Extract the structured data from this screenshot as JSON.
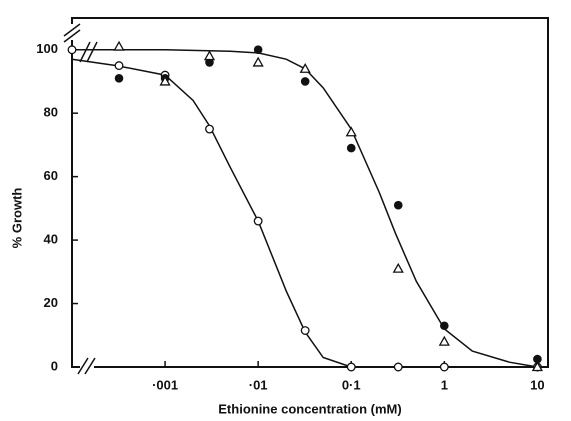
{
  "chart_data": {
    "type": "scatter",
    "x_label": "Ethionine concentration (mM)",
    "y_label": "% Growth",
    "xscale": "log",
    "xlim": [
      0.0001,
      13
    ],
    "xticks": [
      {
        "value": 0.001,
        "label": "·001"
      },
      {
        "value": 0.01,
        "label": "·01"
      },
      {
        "value": 0.1,
        "label": "0·1"
      },
      1,
      10
    ],
    "ylim": [
      0,
      110
    ],
    "yticks": [
      0,
      20,
      40,
      60,
      80,
      100
    ],
    "color": "#111111",
    "series": [
      {
        "marker": "open-circle",
        "x": [
          0.0001,
          0.00032,
          0.001,
          0.003,
          0.01,
          0.032,
          0.1,
          0.32,
          1,
          10
        ],
        "values": [
          100,
          95,
          92,
          75,
          46,
          11.5,
          0,
          0,
          0,
          0
        ]
      },
      {
        "marker": "filled-circle",
        "x": [
          0.00032,
          0.001,
          0.003,
          0.01,
          0.032,
          0.1,
          0.32,
          1,
          10
        ],
        "values": [
          91,
          91,
          96,
          100,
          90,
          69,
          51,
          13,
          2.5
        ]
      },
      {
        "marker": "open-triangle",
        "x": [
          0.00032,
          0.001,
          0.003,
          0.01,
          0.032,
          0.1,
          0.32,
          1,
          10
        ],
        "values": [
          101,
          90,
          98,
          96,
          94,
          74,
          31,
          8,
          0
        ]
      }
    ],
    "curves": [
      {
        "x": [
          0.0001,
          0.0003,
          0.001,
          0.002,
          0.003,
          0.005,
          0.01,
          0.02,
          0.032,
          0.05,
          0.1
        ],
        "values": [
          97,
          95,
          92,
          84,
          76,
          63,
          46,
          24,
          11,
          3,
          0
        ]
      },
      {
        "x": [
          0.0001,
          0.001,
          0.005,
          0.01,
          0.02,
          0.032,
          0.05,
          0.1,
          0.2,
          0.3,
          0.5,
          1,
          2,
          5,
          10
        ],
        "values": [
          100,
          100,
          99.5,
          99,
          97,
          94,
          88,
          75,
          55,
          42,
          27,
          12,
          5,
          1.5,
          0
        ]
      }
    ]
  }
}
